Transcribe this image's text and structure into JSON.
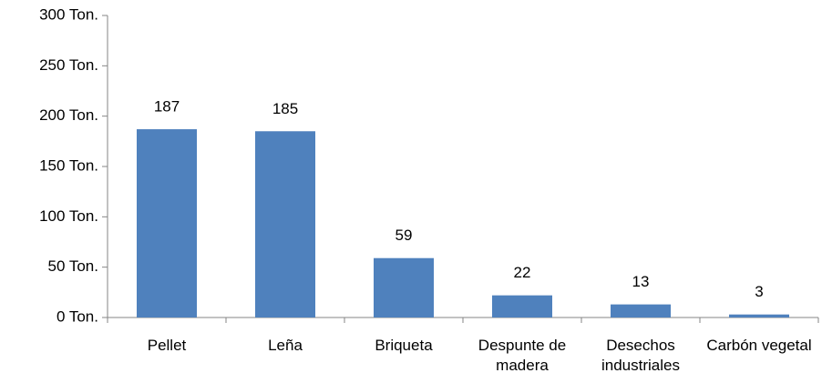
{
  "chart_data": {
    "type": "bar",
    "categories": [
      "Pellet",
      "Leña",
      "Briqueta",
      "Despunte de madera",
      "Desechos industriales",
      "Carbón vegetal"
    ],
    "values": [
      187,
      185,
      59,
      22,
      13,
      3
    ],
    "color": "#4f81bd",
    "ylim": [
      0,
      300
    ],
    "yticks": [
      {
        "value": 0,
        "label": "0 Ton."
      },
      {
        "value": 50,
        "label": "50 Ton."
      },
      {
        "value": 100,
        "label": "100 Ton."
      },
      {
        "value": 150,
        "label": "150 Ton."
      },
      {
        "value": 200,
        "label": "200 Ton."
      },
      {
        "value": 250,
        "label": "250 Ton."
      },
      {
        "value": 300,
        "label": "300 Ton."
      }
    ],
    "grid": false
  }
}
